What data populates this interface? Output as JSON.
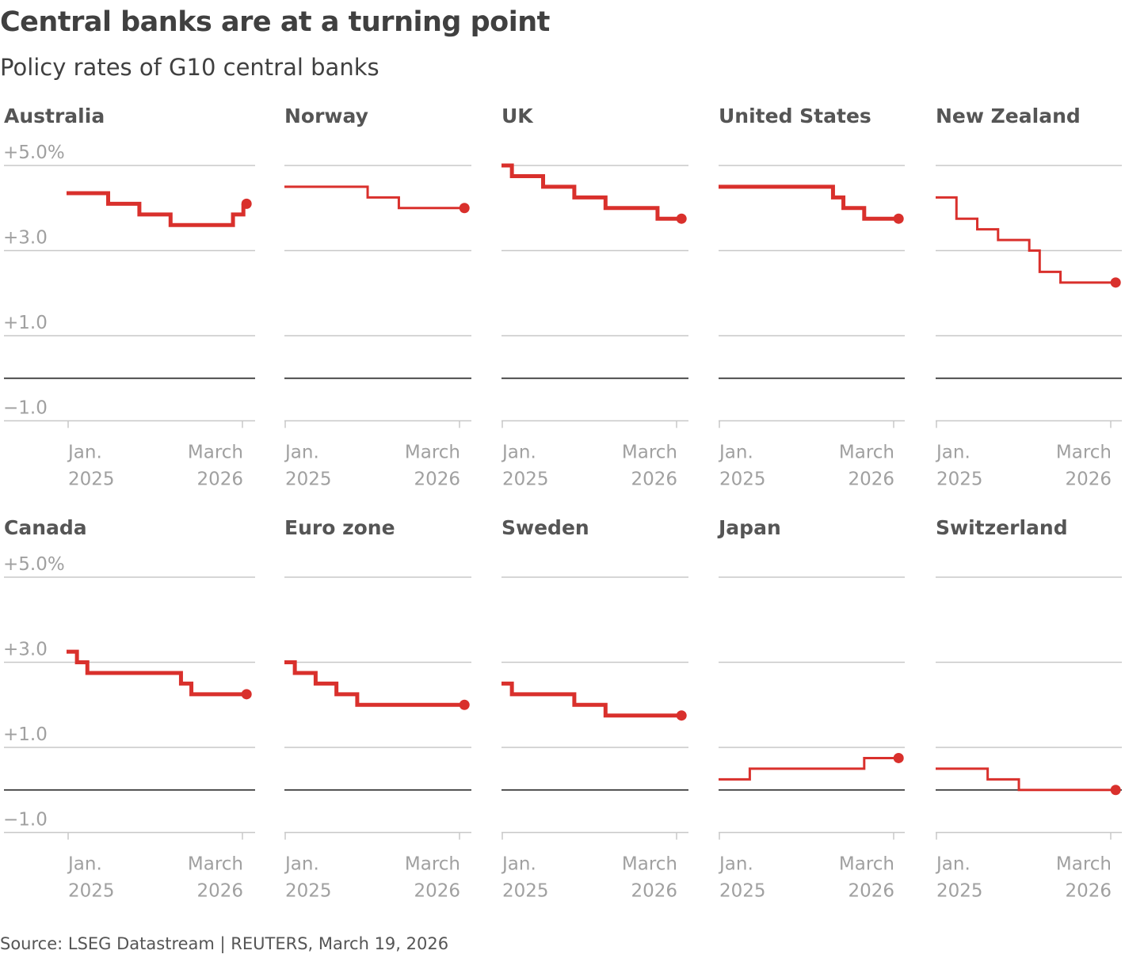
{
  "title": "Central banks are at a turning point",
  "subtitle": "Policy rates of G10 central banks",
  "source": "Source: LSEG Datastream | REUTERS, March 19, 2026",
  "colors": {
    "series": "#d9302c",
    "grid": "#c8c8c8",
    "zero_line": "#333333",
    "axis_label": "#a0a0a0",
    "panel_title": "#555555"
  },
  "chart_data": {
    "type": "line",
    "step": "after",
    "x_axis": {
      "range": [
        "2024-10",
        "2026-03"
      ],
      "ticks": [
        {
          "x": "2025-01",
          "line1": "Jan.",
          "line2": "2025"
        },
        {
          "x": "2026-03",
          "line1": "March",
          "line2": "2026"
        }
      ]
    },
    "y_axis": {
      "range": [
        -1.0,
        5.0
      ],
      "gridlines": [
        -1.0,
        1.0,
        3.0,
        5.0
      ],
      "zero_line": true,
      "tick_labels": [
        {
          "value": 5.0,
          "label": "+5.0%"
        },
        {
          "value": 3.0,
          "label": "+3.0"
        },
        {
          "value": 1.0,
          "label": "+1.0"
        },
        {
          "value": -1.0,
          "label": "−1.0"
        }
      ]
    },
    "panels": [
      {
        "name": "Australia",
        "thick": true,
        "show_y_labels": true,
        "x": [
          "2024-10",
          "2025-02",
          "2025-05",
          "2025-08",
          "2025-12",
          "2026-02",
          "2026-03"
        ],
        "y": [
          4.35,
          4.1,
          3.85,
          3.6,
          3.6,
          3.85,
          4.1
        ]
      },
      {
        "name": "Norway",
        "thick": false,
        "x": [
          "2024-10",
          "2025-06",
          "2025-09",
          "2026-03"
        ],
        "y": [
          4.5,
          4.25,
          4.0,
          4.0
        ]
      },
      {
        "name": "UK",
        "thick": true,
        "x": [
          "2024-10",
          "2024-11",
          "2025-02",
          "2025-05",
          "2025-08",
          "2026-01",
          "2026-03"
        ],
        "y": [
          5.0,
          4.75,
          4.5,
          4.25,
          4.0,
          3.75,
          3.75
        ]
      },
      {
        "name": "United States",
        "thick": true,
        "x": [
          "2024-10",
          "2025-09",
          "2025-10",
          "2025-12",
          "2026-03"
        ],
        "y": [
          4.5,
          4.25,
          4.0,
          3.75,
          3.75
        ]
      },
      {
        "name": "New Zealand",
        "thick": false,
        "x": [
          "2024-10",
          "2024-12",
          "2025-02",
          "2025-04",
          "2025-07",
          "2025-08",
          "2025-10",
          "2026-03"
        ],
        "y": [
          4.25,
          3.75,
          3.5,
          3.25,
          3.0,
          2.5,
          2.25,
          2.25
        ]
      },
      {
        "name": "Canada",
        "thick": true,
        "show_y_labels": true,
        "x": [
          "2024-10",
          "2024-11",
          "2024-12",
          "2025-07",
          "2025-09",
          "2025-10",
          "2026-03"
        ],
        "y": [
          3.25,
          3.0,
          2.75,
          2.75,
          2.5,
          2.25,
          2.25
        ]
      },
      {
        "name": "Euro zone",
        "thick": true,
        "x": [
          "2024-10",
          "2024-11",
          "2025-01",
          "2025-03",
          "2025-05",
          "2026-03"
        ],
        "y": [
          3.0,
          2.75,
          2.5,
          2.25,
          2.0,
          2.0
        ]
      },
      {
        "name": "Sweden",
        "thick": true,
        "x": [
          "2024-10",
          "2024-11",
          "2025-05",
          "2025-08",
          "2026-03"
        ],
        "y": [
          2.5,
          2.25,
          2.0,
          1.75,
          1.75
        ]
      },
      {
        "name": "Japan",
        "thick": false,
        "x": [
          "2024-10",
          "2025-01",
          "2025-12",
          "2026-03"
        ],
        "y": [
          0.25,
          0.5,
          0.75,
          0.75
        ]
      },
      {
        "name": "Switzerland",
        "thick": false,
        "x": [
          "2024-10",
          "2024-12",
          "2025-03",
          "2025-06",
          "2026-03"
        ],
        "y": [
          0.5,
          0.5,
          0.25,
          0.0,
          0.0
        ]
      }
    ]
  }
}
